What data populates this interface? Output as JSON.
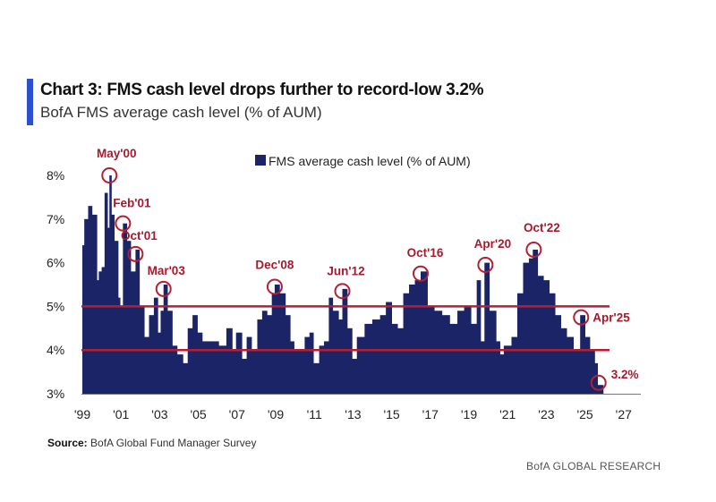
{
  "header": {
    "title": "Chart 3: FMS cash level drops further to record-low 3.2%",
    "subtitle": "BofA FMS average cash level (% of AUM)"
  },
  "source": {
    "label": "Source:",
    "text": "BofA Global Fund Manager Survey"
  },
  "footer": "BofA GLOBAL RESEARCH",
  "colors": {
    "bars": "#1b2466",
    "lines": "#b51f33",
    "annotation": "#a8192e",
    "accent": "#2a4fd0"
  },
  "chart_data": {
    "type": "bar",
    "title": "Chart 3: FMS cash level drops further to record-low 3.2%",
    "subtitle": "BofA FMS average cash level (% of AUM)",
    "legend": {
      "entries": [
        "FMS average cash level (% of AUM)"
      ],
      "placement": "top"
    },
    "xlim": [
      1999,
      2027.5
    ],
    "ylim": [
      3,
      8.5
    ],
    "x_ticks": [
      "'99",
      "'01",
      "'03",
      "'05",
      "'07",
      "'09",
      "'11",
      "'13",
      "'15",
      "'17",
      "'19",
      "'21",
      "'23",
      "'25",
      "'27"
    ],
    "x_tick_values": [
      1999,
      2001,
      2003,
      2005,
      2007,
      2009,
      2011,
      2013,
      2015,
      2017,
      2019,
      2021,
      2023,
      2025,
      2027
    ],
    "y_ticks": [
      "3%",
      "4%",
      "5%",
      "6%",
      "7%",
      "8%"
    ],
    "y_tick_values": [
      3,
      4,
      5,
      6,
      7,
      8
    ],
    "reference_lines": [
      5.0,
      4.0
    ],
    "grid": false,
    "series": [
      {
        "name": "FMS average cash level (% of AUM)",
        "points": [
          [
            1999.0,
            6.4
          ],
          [
            1999.1,
            7.0
          ],
          [
            1999.3,
            7.3
          ],
          [
            1999.5,
            7.1
          ],
          [
            1999.75,
            5.6
          ],
          [
            1999.85,
            5.8
          ],
          [
            2000.0,
            5.9
          ],
          [
            2000.15,
            7.6
          ],
          [
            2000.3,
            6.8
          ],
          [
            2000.4,
            8.0
          ],
          [
            2000.5,
            7.1
          ],
          [
            2000.65,
            6.5
          ],
          [
            2000.85,
            5.2
          ],
          [
            2000.95,
            5.0
          ],
          [
            2001.1,
            6.9
          ],
          [
            2001.3,
            6.5
          ],
          [
            2001.5,
            5.8
          ],
          [
            2001.75,
            6.3
          ],
          [
            2001.95,
            5.0
          ],
          [
            2002.2,
            4.3
          ],
          [
            2002.45,
            4.8
          ],
          [
            2002.7,
            5.2
          ],
          [
            2002.9,
            4.4
          ],
          [
            2003.05,
            4.9
          ],
          [
            2003.2,
            5.5
          ],
          [
            2003.4,
            4.9
          ],
          [
            2003.65,
            4.1
          ],
          [
            2003.9,
            3.9
          ],
          [
            2004.2,
            3.7
          ],
          [
            2004.45,
            4.5
          ],
          [
            2004.7,
            4.8
          ],
          [
            2004.95,
            4.4
          ],
          [
            2005.2,
            4.2
          ],
          [
            2005.7,
            4.2
          ],
          [
            2006.05,
            4.1
          ],
          [
            2006.45,
            4.5
          ],
          [
            2006.75,
            4.0
          ],
          [
            2006.95,
            4.4
          ],
          [
            2007.25,
            3.8
          ],
          [
            2007.5,
            4.3
          ],
          [
            2007.75,
            4.0
          ],
          [
            2008.05,
            4.7
          ],
          [
            2008.3,
            4.9
          ],
          [
            2008.55,
            4.8
          ],
          [
            2008.8,
            5.3
          ],
          [
            2008.95,
            5.5
          ],
          [
            2009.2,
            5.3
          ],
          [
            2009.5,
            4.8
          ],
          [
            2009.75,
            4.2
          ],
          [
            2009.95,
            4.0
          ],
          [
            2010.25,
            4.0
          ],
          [
            2010.5,
            4.3
          ],
          [
            2010.75,
            4.4
          ],
          [
            2010.95,
            3.7
          ],
          [
            2011.25,
            4.1
          ],
          [
            2011.5,
            4.2
          ],
          [
            2011.75,
            5.2
          ],
          [
            2011.95,
            4.9
          ],
          [
            2012.25,
            4.7
          ],
          [
            2012.45,
            5.4
          ],
          [
            2012.7,
            4.5
          ],
          [
            2012.95,
            3.8
          ],
          [
            2013.2,
            4.3
          ],
          [
            2013.6,
            4.6
          ],
          [
            2014.0,
            4.7
          ],
          [
            2014.4,
            4.8
          ],
          [
            2014.7,
            5.1
          ],
          [
            2015.0,
            4.6
          ],
          [
            2015.3,
            4.5
          ],
          [
            2015.6,
            5.3
          ],
          [
            2015.9,
            5.5
          ],
          [
            2016.2,
            5.6
          ],
          [
            2016.5,
            5.8
          ],
          [
            2016.85,
            5.0
          ],
          [
            2017.2,
            4.9
          ],
          [
            2017.6,
            4.8
          ],
          [
            2018.0,
            4.6
          ],
          [
            2018.4,
            4.9
          ],
          [
            2018.75,
            5.0
          ],
          [
            2019.1,
            4.6
          ],
          [
            2019.4,
            5.6
          ],
          [
            2019.6,
            4.2
          ],
          [
            2019.8,
            6.0
          ],
          [
            2020.05,
            4.9
          ],
          [
            2020.4,
            4.2
          ],
          [
            2020.6,
            3.9
          ],
          [
            2020.8,
            4.1
          ],
          [
            2021.2,
            4.3
          ],
          [
            2021.5,
            5.3
          ],
          [
            2021.8,
            6.0
          ],
          [
            2022.1,
            6.1
          ],
          [
            2022.3,
            6.3
          ],
          [
            2022.55,
            5.7
          ],
          [
            2022.85,
            5.6
          ],
          [
            2023.15,
            5.3
          ],
          [
            2023.45,
            4.8
          ],
          [
            2023.75,
            4.5
          ],
          [
            2024.05,
            4.3
          ],
          [
            2024.4,
            4.0
          ],
          [
            2024.75,
            4.8
          ],
          [
            2025.0,
            4.3
          ],
          [
            2025.25,
            4.0
          ],
          [
            2025.5,
            3.7
          ],
          [
            2025.65,
            3.2
          ],
          [
            2025.8,
            3.2
          ]
        ]
      }
    ],
    "annotations": [
      {
        "label": "May'00",
        "x": 2000.4,
        "y": 8.0
      },
      {
        "label": "Feb'01",
        "x": 2001.1,
        "y": 6.9
      },
      {
        "label": "Oct'01",
        "x": 2001.75,
        "y": 6.2
      },
      {
        "label": "Mar'03",
        "x": 2003.2,
        "y": 5.4
      },
      {
        "label": "Dec'08",
        "x": 2008.95,
        "y": 5.45
      },
      {
        "label": "Jun'12",
        "x": 2012.45,
        "y": 5.35
      },
      {
        "label": "Oct'16",
        "x": 2016.5,
        "y": 5.75
      },
      {
        "label": "Apr'20",
        "x": 2019.85,
        "y": 5.95
      },
      {
        "label": "Oct'22",
        "x": 2022.35,
        "y": 6.3
      },
      {
        "label": "Apr'25",
        "x": 2024.8,
        "y": 4.75
      },
      {
        "label": "3.2%",
        "x": 2025.7,
        "y": 3.25
      }
    ]
  }
}
